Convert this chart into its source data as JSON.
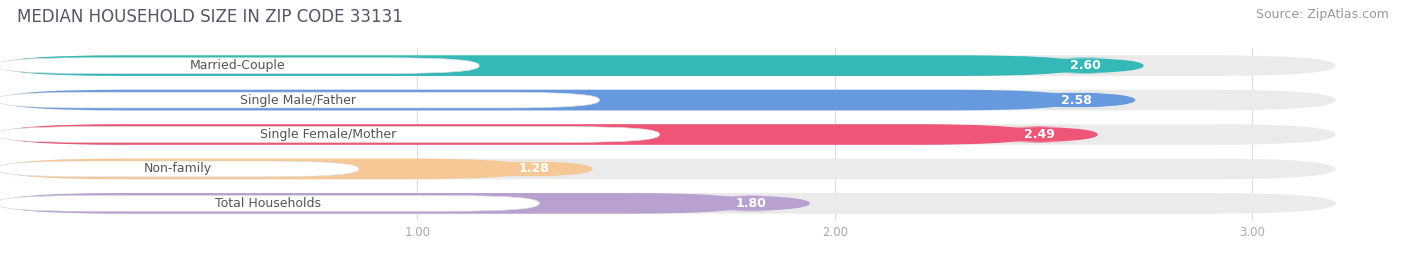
{
  "title": "MEDIAN HOUSEHOLD SIZE IN ZIP CODE 33131",
  "source": "Source: ZipAtlas.com",
  "categories": [
    "Married-Couple",
    "Single Male/Father",
    "Single Female/Mother",
    "Non-family",
    "Total Households"
  ],
  "values": [
    2.6,
    2.58,
    2.49,
    1.28,
    1.8
  ],
  "bar_colors": [
    "#35b8b8",
    "#6699dd",
    "#ee5577",
    "#f5c896",
    "#b8a0d0"
  ],
  "bar_bg_colors": [
    "#ebebeb",
    "#ebebeb",
    "#ebebeb",
    "#ebebeb",
    "#ebebeb"
  ],
  "label_bg": "#ffffff",
  "label_text_colors": [
    "#555555",
    "#555555",
    "#555555",
    "#888855",
    "#555555"
  ],
  "xlim": [
    0.0,
    3.2
  ],
  "xticks": [
    1.0,
    2.0,
    3.0
  ],
  "value_fontsize": 9,
  "bar_label_fontsize": 9,
  "title_fontsize": 12,
  "source_fontsize": 9,
  "background_color": "#ffffff"
}
